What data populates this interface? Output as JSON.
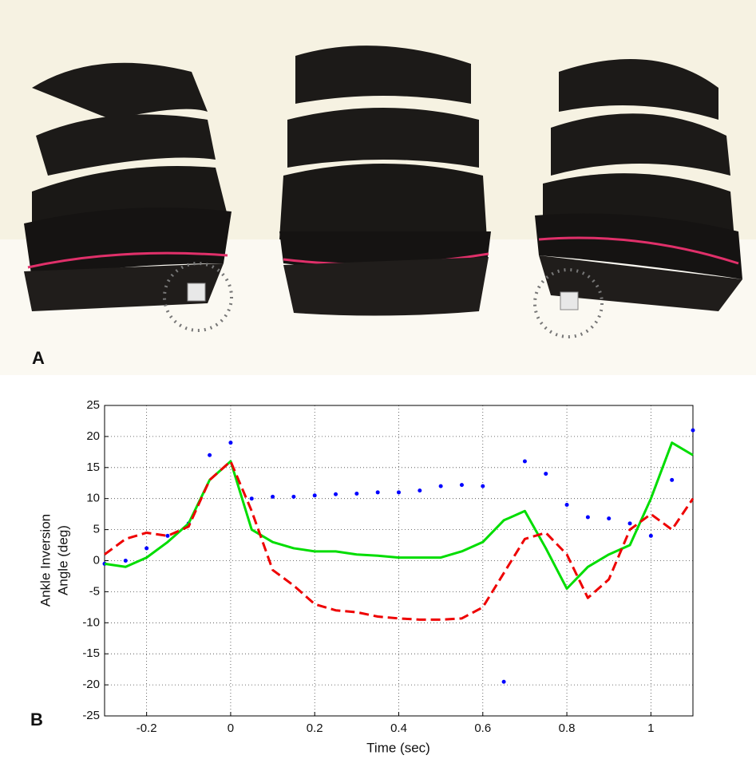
{
  "panels": [
    "A",
    "B"
  ],
  "chart_data": {
    "type": "line",
    "xlabel": "Time (sec)",
    "ylabel": [
      "Ankle Inversion",
      "Angle (deg)"
    ],
    "x": [
      -0.3,
      -0.25,
      -0.2,
      -0.15,
      -0.1,
      -0.05,
      0,
      0.05,
      0.1,
      0.15,
      0.2,
      0.25,
      0.3,
      0.35,
      0.4,
      0.45,
      0.5,
      0.55,
      0.6,
      0.65,
      0.7,
      0.75,
      0.8,
      0.85,
      0.9,
      0.95,
      1.0,
      1.05,
      1.1
    ],
    "series": [
      {
        "color": "#0000ff",
        "linestyle": "dotted",
        "values": [
          -0.5,
          0,
          2,
          4,
          6,
          17,
          19,
          10,
          10.3,
          10.3,
          10.5,
          10.7,
          10.8,
          11,
          11,
          11.3,
          12,
          12.2,
          12,
          -19.5,
          16,
          14,
          9,
          7,
          6.8,
          6,
          4,
          13,
          21
        ]
      },
      {
        "color": "#00dd00",
        "linestyle": "solid",
        "values": [
          -0.5,
          -1,
          0.5,
          3,
          6,
          13,
          16,
          5,
          3,
          2,
          1.5,
          1.5,
          1,
          0.8,
          0.5,
          0.5,
          0.5,
          1.5,
          3,
          6.5,
          8,
          2,
          -4.5,
          -1,
          1,
          2.5,
          10,
          19,
          17
        ]
      },
      {
        "color": "#ee0000",
        "linestyle": "dashed",
        "values": [
          1,
          3.5,
          4.5,
          4,
          5.5,
          13,
          16,
          8,
          -1.5,
          -4,
          -7,
          -8,
          -8.3,
          -9,
          -9.3,
          -9.5,
          -9.5,
          -9.3,
          -7.5,
          -2,
          3.5,
          4.5,
          1,
          -6,
          -3,
          5,
          7.5,
          5,
          10
        ]
      }
    ],
    "xlim": [
      -0.3,
      1.1
    ],
    "ylim": [
      -25,
      25
    ],
    "xticks": [
      -0.2,
      0,
      0.2,
      0.4,
      0.6,
      0.8,
      1
    ],
    "yticks": [
      -25,
      -20,
      -15,
      -10,
      -5,
      0,
      5,
      10,
      15,
      20,
      25
    ],
    "grid": true
  }
}
